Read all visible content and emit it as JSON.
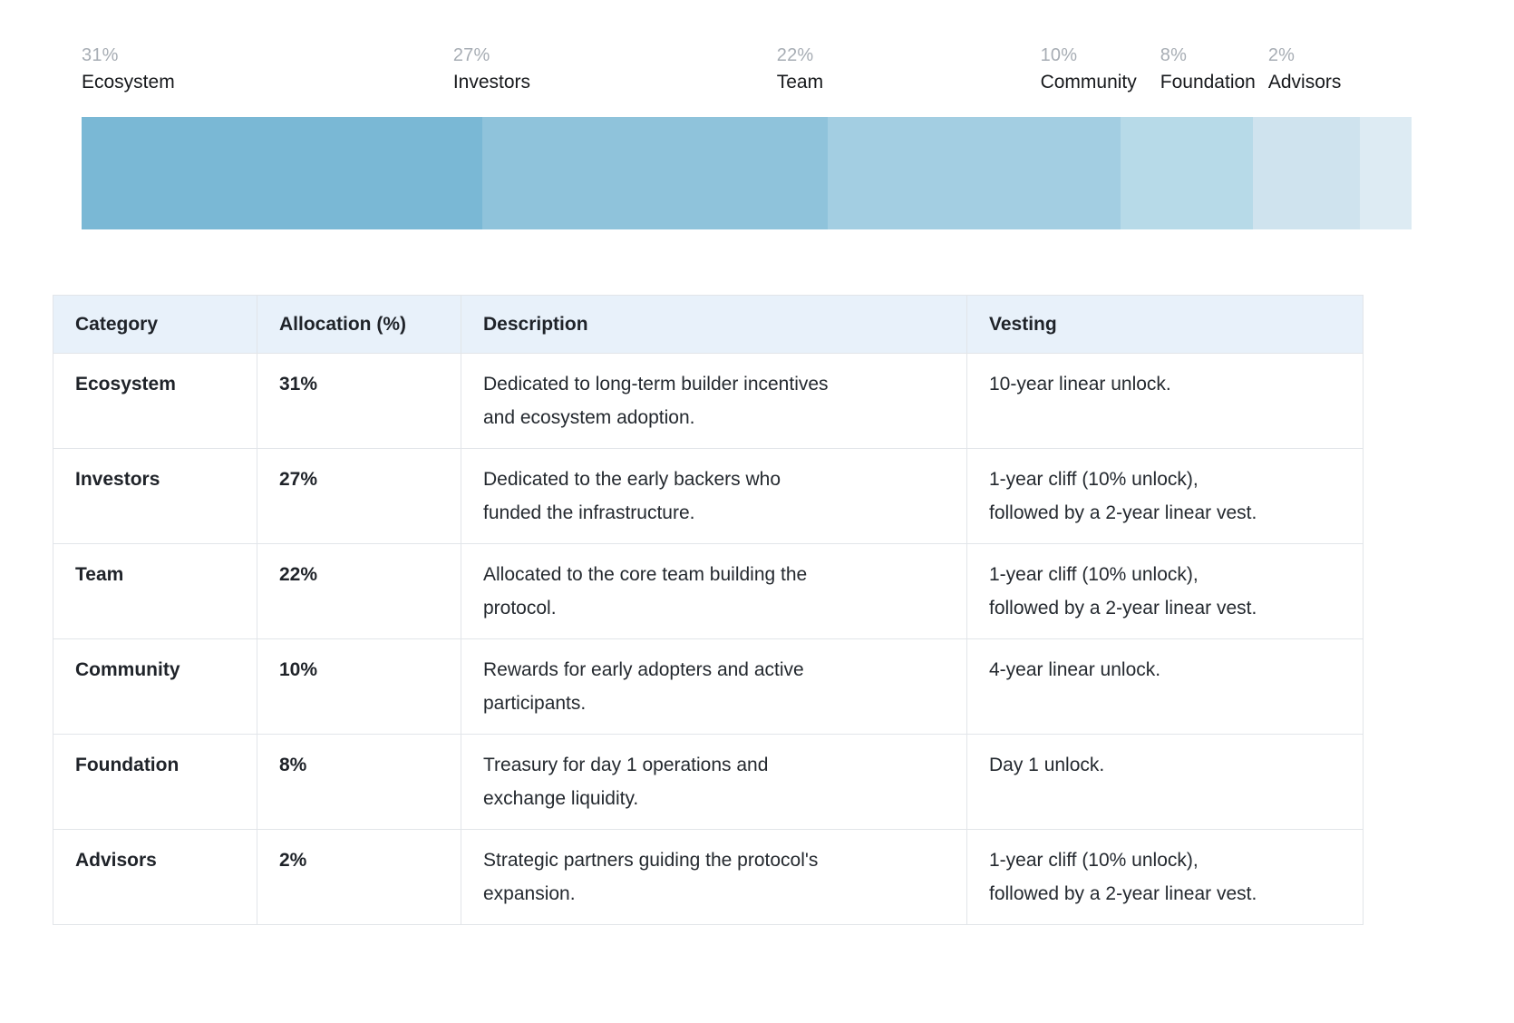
{
  "chart_data": {
    "type": "bar",
    "variant": "horizontal-stacked-single-bar",
    "title": "",
    "categories": [
      "Ecosystem",
      "Investors",
      "Team",
      "Community",
      "Foundation",
      "Advisors"
    ],
    "values": [
      31,
      27,
      22,
      10,
      8,
      2
    ],
    "value_labels": [
      "31%",
      "27%",
      "22%",
      "10%",
      "8%",
      "2%"
    ],
    "colors": [
      "#7ab8d5",
      "#8fc3db",
      "#a3cee2",
      "#b7dae8",
      "#cfe3ee",
      "#ddebf3"
    ],
    "display_widths_pct": [
      30.1,
      26.0,
      22.0,
      10.0,
      8.0,
      3.9
    ],
    "legend_position": "above-bar",
    "grid": false,
    "pct_label_color": "#a7adb4",
    "name_label_color": "#17191c"
  },
  "table": {
    "headers": [
      "Category",
      "Allocation (%)",
      "Description",
      "Vesting"
    ],
    "rows": [
      {
        "category": "Ecosystem",
        "allocation": "31%",
        "description": "Dedicated to long-term builder incentives\nand ecosystem adoption.",
        "vesting": "10-year linear unlock."
      },
      {
        "category": "Investors",
        "allocation": "27%",
        "description": "Dedicated to the early backers who\nfunded the infrastructure.",
        "vesting": "1-year cliff (10% unlock),\nfollowed by a 2-year linear vest."
      },
      {
        "category": "Team",
        "allocation": "22%",
        "description": "Allocated to the core team building the\nprotocol.",
        "vesting": "1-year cliff (10% unlock),\nfollowed by a 2-year linear vest."
      },
      {
        "category": "Community",
        "allocation": "10%",
        "description": "Rewards for early adopters and active\nparticipants.",
        "vesting": "4-year linear unlock."
      },
      {
        "category": "Foundation",
        "allocation": "8%",
        "description": "Treasury for day 1 operations and\nexchange liquidity.",
        "vesting": "Day 1 unlock."
      },
      {
        "category": "Advisors",
        "allocation": "2%",
        "description": "Strategic partners guiding the protocol's\nexpansion.",
        "vesting": "1-year cliff (10% unlock),\nfollowed by a 2-year linear vest."
      }
    ],
    "header_bg": "#e8f1fa",
    "border_color": "#e2e5e9"
  }
}
